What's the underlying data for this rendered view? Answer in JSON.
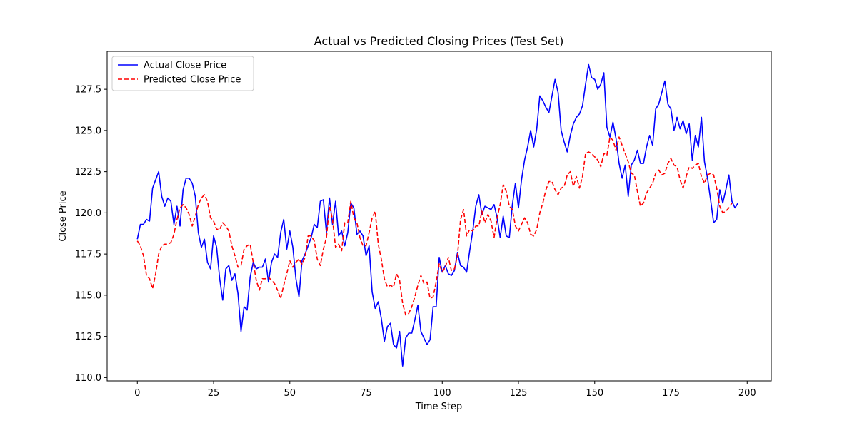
{
  "chart_data": {
    "type": "line",
    "title": "Actual vs Predicted Closing Prices (Test Set)",
    "xlabel": "Time Step",
    "ylabel": "Close Price",
    "xlim": [
      -9.9,
      207.9
    ],
    "ylim": [
      109.8,
      129.8
    ],
    "xticks": [
      0,
      25,
      50,
      75,
      100,
      125,
      150,
      175,
      200
    ],
    "yticks": [
      110.0,
      112.5,
      115.0,
      117.5,
      120.0,
      122.5,
      125.0,
      127.5
    ],
    "grid": false,
    "legend_position": "top-left",
    "series": [
      {
        "name": "Actual Close Price",
        "color": "#0000ff",
        "style": "solid",
        "values": [
          118.4,
          119.3,
          119.3,
          119.6,
          119.5,
          121.5,
          122.0,
          122.5,
          121.0,
          120.4,
          120.9,
          120.7,
          119.3,
          120.4,
          119.2,
          121.4,
          122.1,
          122.1,
          121.8,
          121.0,
          118.8,
          117.9,
          118.4,
          117.0,
          116.6,
          118.6,
          117.9,
          116.0,
          114.7,
          116.6,
          116.8,
          115.9,
          116.3,
          115.1,
          112.8,
          114.3,
          114.1,
          116.1,
          117.0,
          116.6,
          116.7,
          116.7,
          117.2,
          115.8,
          117.0,
          117.5,
          117.3,
          118.8,
          119.6,
          117.8,
          118.9,
          117.9,
          116.0,
          114.9,
          117.1,
          117.5,
          118.0,
          118.5,
          119.3,
          119.1,
          120.7,
          120.8,
          118.8,
          120.9,
          119.3,
          120.7,
          118.6,
          118.9,
          118.0,
          118.8,
          120.6,
          120.3,
          118.7,
          118.9,
          118.6,
          117.4,
          118.0,
          115.2,
          114.2,
          114.6,
          113.6,
          112.2,
          113.1,
          113.3,
          112.0,
          111.8,
          112.8,
          110.7,
          112.4,
          112.7,
          112.7,
          113.5,
          114.4,
          112.8,
          112.4,
          112.0,
          112.3,
          114.3,
          114.3,
          117.3,
          116.4,
          116.8,
          116.3,
          116.2,
          116.5,
          117.6,
          116.8,
          116.7,
          116.4,
          117.7,
          118.9,
          120.4,
          121.1,
          119.9,
          120.4,
          120.3,
          120.2,
          120.5,
          119.7,
          118.5,
          119.8,
          118.6,
          118.5,
          120.5,
          121.8,
          120.3,
          122.0,
          123.2,
          124.0,
          125.0,
          124.0,
          125.1,
          127.1,
          126.8,
          126.4,
          126.1,
          127.1,
          128.1,
          127.3,
          125.0,
          124.3,
          123.7,
          124.7,
          125.4,
          125.8,
          126.0,
          126.5,
          127.8,
          129.0,
          128.2,
          128.1,
          127.5,
          127.8,
          128.5,
          125.2,
          124.6,
          125.5,
          124.5,
          123.0,
          122.1,
          122.9,
          121.0,
          122.9,
          123.2,
          123.8,
          123.0,
          123.0,
          124.0,
          124.7,
          124.1,
          126.3,
          126.6,
          127.3,
          128.0,
          126.6,
          126.3,
          125.0,
          125.8,
          125.1,
          125.6,
          124.8,
          125.4,
          123.2,
          124.7,
          124.0,
          125.8,
          123.1,
          122.1,
          120.8,
          119.4,
          119.6,
          121.4,
          120.6,
          121.4,
          122.3,
          120.7,
          120.3,
          120.6
        ]
      },
      {
        "name": "Predicted Close Price",
        "color": "#ff0000",
        "style": "dashed",
        "values": [
          118.3,
          118.0,
          117.4,
          116.2,
          116.0,
          115.4,
          116.3,
          117.5,
          118.0,
          118.1,
          118.1,
          118.2,
          118.7,
          119.6,
          120.3,
          120.5,
          120.3,
          119.9,
          119.2,
          119.8,
          120.5,
          120.9,
          121.1,
          120.7,
          119.7,
          119.5,
          119.0,
          119.0,
          119.4,
          119.2,
          118.9,
          118.0,
          117.4,
          116.7,
          116.8,
          117.8,
          118.0,
          118.1,
          117.0,
          115.9,
          115.3,
          116.0,
          116.0,
          116.1,
          115.9,
          115.7,
          115.3,
          114.8,
          115.6,
          116.3,
          117.1,
          116.7,
          117.0,
          117.2,
          116.9,
          117.3,
          118.6,
          118.6,
          118.3,
          117.2,
          116.8,
          117.8,
          118.5,
          120.4,
          119.6,
          117.9,
          118.1,
          117.7,
          119.4,
          119.4,
          120.7,
          119.7,
          119.4,
          118.5,
          118.0,
          118.0,
          118.8,
          119.7,
          120.1,
          118.1,
          117.2,
          116.0,
          115.5,
          115.6,
          115.5,
          116.3,
          115.9,
          114.5,
          113.8,
          113.9,
          114.3,
          114.9,
          115.6,
          116.2,
          115.7,
          115.8,
          114.8,
          114.9,
          115.8,
          116.9,
          116.4,
          116.7,
          117.3,
          116.5,
          116.6,
          117.4,
          119.6,
          120.2,
          118.6,
          119.0,
          118.9,
          119.2,
          119.2,
          120.1,
          119.4,
          119.9,
          119.5,
          118.5,
          119.7,
          120.5,
          121.7,
          121.3,
          120.4,
          120.2,
          119.2,
          118.9,
          119.3,
          119.7,
          119.4,
          118.7,
          118.6,
          119.0,
          120.0,
          120.6,
          121.4,
          121.9,
          121.9,
          121.4,
          121.1,
          121.5,
          121.6,
          122.3,
          122.5,
          121.6,
          122.2,
          121.5,
          122.2,
          123.6,
          123.7,
          123.6,
          123.4,
          123.2,
          122.8,
          123.6,
          123.5,
          124.6,
          124.4,
          123.8,
          124.6,
          124.1,
          123.6,
          123.1,
          122.4,
          122.3,
          121.3,
          120.4,
          120.6,
          121.2,
          121.5,
          121.8,
          122.4,
          122.6,
          122.3,
          122.4,
          123.0,
          123.3,
          122.9,
          122.8,
          122.0,
          121.5,
          122.2,
          122.8,
          122.7,
          122.9,
          123.0,
          122.2,
          121.8,
          122.3,
          122.4,
          122.3,
          121.5,
          120.4,
          120.0,
          120.1,
          120.3,
          120.6
        ]
      }
    ]
  }
}
